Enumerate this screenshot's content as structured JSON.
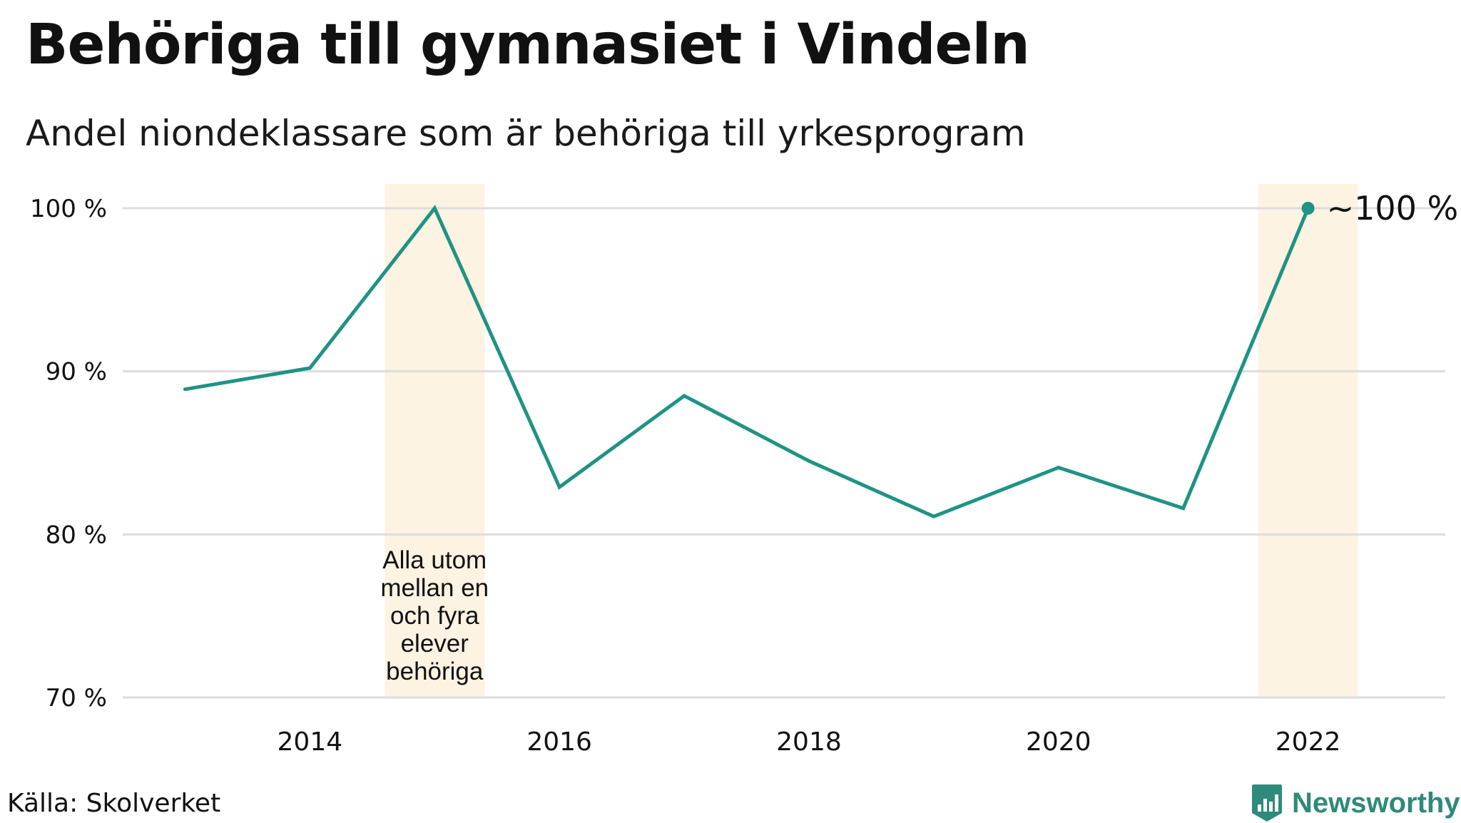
{
  "title": "Behöriga till gymnasiet i Vindeln",
  "subtitle": "Andel niondeklassare som är behöriga till yrkesprogram",
  "source": "Källa: Skolverket",
  "brand": {
    "name": "Newsworthy",
    "icon": "newsworthy-bar-chart-icon",
    "color": "#2e8a7a"
  },
  "colors": {
    "line": "#1f9384",
    "highlight": "#fdf3e3",
    "grid": "#dddddd",
    "text": "#111111"
  },
  "chart_data": {
    "type": "line",
    "title": "Behöriga till gymnasiet i Vindeln",
    "subtitle": "Andel niondeklassare som är behöriga till yrkesprogram",
    "xlabel": "",
    "ylabel": "",
    "x": [
      2013,
      2014,
      2015,
      2016,
      2017,
      2018,
      2019,
      2020,
      2021,
      2022
    ],
    "values": [
      88.9,
      90.2,
      100,
      82.9,
      88.5,
      84.5,
      81.1,
      84.1,
      81.6,
      100
    ],
    "ylim": [
      70,
      100
    ],
    "xlim": [
      2012.5,
      2023.1
    ],
    "yticks": [
      100,
      90,
      80,
      70
    ],
    "ytick_labels": [
      "100 %",
      "90 %",
      "80 %",
      "70 %"
    ],
    "xticks": [
      2014,
      2016,
      2018,
      2020,
      2022
    ],
    "xtick_labels": [
      "2014",
      "2016",
      "2018",
      "2020",
      "2022"
    ],
    "grid": true,
    "highlight_bands": [
      {
        "year": 2015,
        "annotation": [
          "Alla utom",
          "mellan en",
          "och fyra",
          "elever",
          "behöriga"
        ]
      },
      {
        "year": 2022,
        "annotation": []
      }
    ],
    "end_label": {
      "x": 2022,
      "y": 100,
      "text": "~100 %"
    }
  }
}
